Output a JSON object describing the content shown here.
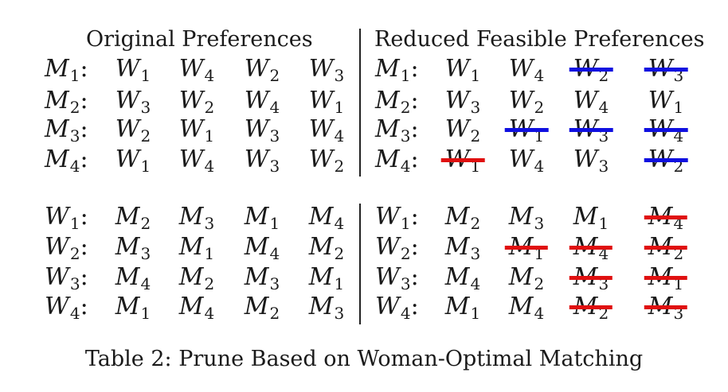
{
  "headers": {
    "left": "Original Preferences",
    "right": "Reduced Feasible Preferences"
  },
  "colors": {
    "blue": "#1010e0",
    "red": "#e01010"
  },
  "men": {
    "original": [
      {
        "agent": [
          "M",
          "1"
        ],
        "prefs": [
          [
            "W",
            "1"
          ],
          [
            "W",
            "4"
          ],
          [
            "W",
            "2"
          ],
          [
            "W",
            "3"
          ]
        ]
      },
      {
        "agent": [
          "M",
          "2"
        ],
        "prefs": [
          [
            "W",
            "3"
          ],
          [
            "W",
            "2"
          ],
          [
            "W",
            "4"
          ],
          [
            "W",
            "1"
          ]
        ]
      },
      {
        "agent": [
          "M",
          "3"
        ],
        "prefs": [
          [
            "W",
            "2"
          ],
          [
            "W",
            "1"
          ],
          [
            "W",
            "3"
          ],
          [
            "W",
            "4"
          ]
        ]
      },
      {
        "agent": [
          "M",
          "4"
        ],
        "prefs": [
          [
            "W",
            "1"
          ],
          [
            "W",
            "4"
          ],
          [
            "W",
            "3"
          ],
          [
            "W",
            "2"
          ]
        ]
      }
    ],
    "reduced": [
      {
        "agent": [
          "M",
          "1"
        ],
        "prefs": [
          [
            "W",
            "1"
          ],
          [
            "W",
            "4"
          ],
          [
            "W",
            "2",
            "blue"
          ],
          [
            "W",
            "3",
            "blue"
          ]
        ]
      },
      {
        "agent": [
          "M",
          "2"
        ],
        "prefs": [
          [
            "W",
            "3"
          ],
          [
            "W",
            "2"
          ],
          [
            "W",
            "4"
          ],
          [
            "W",
            "1"
          ]
        ]
      },
      {
        "agent": [
          "M",
          "3"
        ],
        "prefs": [
          [
            "W",
            "2"
          ],
          [
            "W",
            "1",
            "blue"
          ],
          [
            "W",
            "3",
            "blue"
          ],
          [
            "W",
            "4",
            "blue"
          ]
        ]
      },
      {
        "agent": [
          "M",
          "4"
        ],
        "prefs": [
          [
            "W",
            "1",
            "red"
          ],
          [
            "W",
            "4"
          ],
          [
            "W",
            "3"
          ],
          [
            "W",
            "2",
            "blue"
          ]
        ]
      }
    ]
  },
  "women": {
    "original": [
      {
        "agent": [
          "W",
          "1"
        ],
        "prefs": [
          [
            "M",
            "2"
          ],
          [
            "M",
            "3"
          ],
          [
            "M",
            "1"
          ],
          [
            "M",
            "4"
          ]
        ]
      },
      {
        "agent": [
          "W",
          "2"
        ],
        "prefs": [
          [
            "M",
            "3"
          ],
          [
            "M",
            "1"
          ],
          [
            "M",
            "4"
          ],
          [
            "M",
            "2"
          ]
        ]
      },
      {
        "agent": [
          "W",
          "3"
        ],
        "prefs": [
          [
            "M",
            "4"
          ],
          [
            "M",
            "2"
          ],
          [
            "M",
            "3"
          ],
          [
            "M",
            "1"
          ]
        ]
      },
      {
        "agent": [
          "W",
          "4"
        ],
        "prefs": [
          [
            "M",
            "1"
          ],
          [
            "M",
            "4"
          ],
          [
            "M",
            "2"
          ],
          [
            "M",
            "3"
          ]
        ]
      }
    ],
    "reduced": [
      {
        "agent": [
          "W",
          "1"
        ],
        "prefs": [
          [
            "M",
            "2"
          ],
          [
            "M",
            "3"
          ],
          [
            "M",
            "1"
          ],
          [
            "M",
            "4",
            "red"
          ]
        ]
      },
      {
        "agent": [
          "W",
          "2"
        ],
        "prefs": [
          [
            "M",
            "3"
          ],
          [
            "M",
            "1",
            "red"
          ],
          [
            "M",
            "4",
            "red"
          ],
          [
            "M",
            "2",
            "red"
          ]
        ]
      },
      {
        "agent": [
          "W",
          "3"
        ],
        "prefs": [
          [
            "M",
            "4"
          ],
          [
            "M",
            "2"
          ],
          [
            "M",
            "3",
            "red"
          ],
          [
            "M",
            "1",
            "red"
          ]
        ]
      },
      {
        "agent": [
          "W",
          "4"
        ],
        "prefs": [
          [
            "M",
            "1"
          ],
          [
            "M",
            "4"
          ],
          [
            "M",
            "2",
            "red"
          ],
          [
            "M",
            "3",
            "red"
          ]
        ]
      }
    ]
  },
  "caption": "Table 2: Prune Based on Woman-Optimal Matching"
}
